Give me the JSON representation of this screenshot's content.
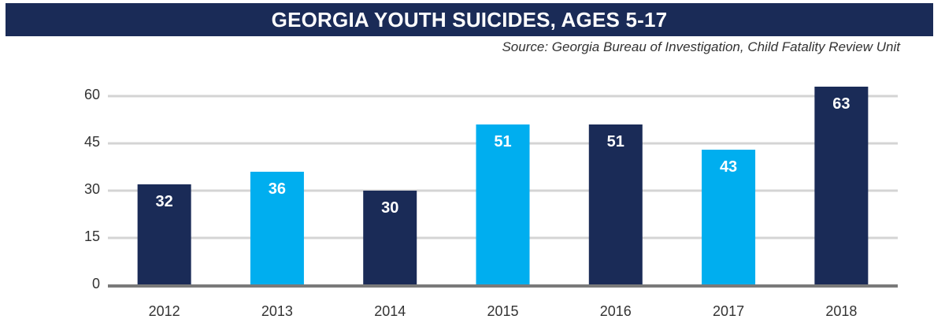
{
  "header": {
    "title": "GEORGIA YOUTH SUICIDES, AGES 5-17",
    "source": "Source: Georgia Bureau of Investigation, Child Fatality Review Unit"
  },
  "colors": {
    "title_background": "#1a2b57",
    "dark_bar": "#1a2b57",
    "light_bar": "#00aeef",
    "gridline": "#d4d4d4",
    "baseline": "#7a7a7a"
  },
  "chart_data": {
    "type": "bar",
    "title": "GEORGIA YOUTH SUICIDES, AGES 5-17",
    "categories": [
      "2012",
      "2013",
      "2014",
      "2015",
      "2016",
      "2017",
      "2018"
    ],
    "values": [
      32,
      36,
      30,
      51,
      51,
      43,
      63
    ],
    "bar_colors": [
      "#1a2b57",
      "#00aeef",
      "#1a2b57",
      "#00aeef",
      "#1a2b57",
      "#00aeef",
      "#1a2b57"
    ],
    "y_ticks": [
      0,
      15,
      30,
      45,
      60
    ],
    "ylim": [
      0,
      60
    ],
    "xlabel": "",
    "ylabel": "",
    "grid": true,
    "data_labels": true
  }
}
